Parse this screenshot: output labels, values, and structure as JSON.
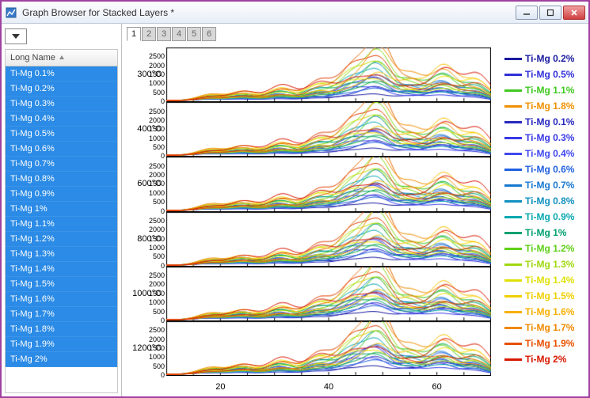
{
  "window": {
    "title": "Graph Browser for Stacked Layers *"
  },
  "sidebar": {
    "header": "Long Name",
    "items": [
      "Ti-Mg 0.1%",
      "Ti-Mg 0.2%",
      "Ti-Mg 0.3%",
      "Ti-Mg 0.4%",
      "Ti-Mg 0.5%",
      "Ti-Mg 0.6%",
      "Ti-Mg 0.7%",
      "Ti-Mg 0.8%",
      "Ti-Mg 0.9%",
      "Ti-Mg 1%",
      "Ti-Mg 1.1%",
      "Ti-Mg 1.2%",
      "Ti-Mg 1.3%",
      "Ti-Mg 1.4%",
      "Ti-Mg 1.5%",
      "Ti-Mg 1.6%",
      "Ti-Mg 1.7%",
      "Ti-Mg 1.8%",
      "Ti-Mg 1.9%",
      "Ti-Mg 2%"
    ]
  },
  "tabs": {
    "labels": [
      "1",
      "2",
      "3",
      "4",
      "5",
      "6"
    ],
    "active": 0
  },
  "chart": {
    "panels": [
      {
        "label": "300°C"
      },
      {
        "label": "400°C"
      },
      {
        "label": "600°C"
      },
      {
        "label": "800°C"
      },
      {
        "label": "1000°C"
      },
      {
        "label": "1200°C"
      }
    ],
    "yticks": [
      0,
      500,
      1000,
      1500,
      2000,
      2500
    ],
    "panel_ymax": 3000,
    "xlim": [
      10,
      70
    ],
    "xticks": [
      20,
      40,
      60
    ],
    "background": "#ffffff",
    "axis_color": "#000000",
    "tick_fontsize": 9,
    "label_fontsize": 11,
    "series_colors": [
      "#1a1aa0",
      "#2828c0",
      "#3030d8",
      "#3838e8",
      "#4048f0",
      "#2060e0",
      "#1878d0",
      "#1090c0",
      "#08a8b0",
      "#00a070",
      "#10b040",
      "#40c820",
      "#80d810",
      "#c0e008",
      "#f0e000",
      "#f8c000",
      "#f09000",
      "#e86800",
      "#e04000",
      "#d81800"
    ],
    "peaks_x": [
      18,
      24,
      31,
      38,
      44,
      49,
      55,
      61,
      67
    ],
    "peak_base_height": [
      180,
      260,
      380,
      520,
      900,
      1600,
      700,
      1000,
      650
    ],
    "peak_width": 2.4,
    "line_width": 1.0
  },
  "legend": [
    {
      "label": "Ti-Mg 0.2%",
      "color": "#1a1aa0"
    },
    {
      "label": "Ti-Mg 0.5%",
      "color": "#3030d8"
    },
    {
      "label": "Ti-Mg 1.1%",
      "color": "#40c820"
    },
    {
      "label": "Ti-Mg 1.8%",
      "color": "#f09000"
    },
    {
      "label": "Ti-Mg 0.1%",
      "color": "#2828c0"
    },
    {
      "label": "Ti-Mg 0.3%",
      "color": "#3838e8"
    },
    {
      "label": "Ti-Mg 0.4%",
      "color": "#4048f0"
    },
    {
      "label": "Ti-Mg 0.6%",
      "color": "#2060e0"
    },
    {
      "label": "Ti-Mg 0.7%",
      "color": "#1878d0"
    },
    {
      "label": "Ti-Mg 0.8%",
      "color": "#1090c0"
    },
    {
      "label": "Ti-Mg 0.9%",
      "color": "#08a8b0"
    },
    {
      "label": "Ti-Mg 1%",
      "color": "#00a070"
    },
    {
      "label": "Ti-Mg 1.2%",
      "color": "#60d018"
    },
    {
      "label": "Ti-Mg 1.3%",
      "color": "#a0d810"
    },
    {
      "label": "Ti-Mg 1.4%",
      "color": "#e0e008"
    },
    {
      "label": "Ti-Mg 1.5%",
      "color": "#f0d000"
    },
    {
      "label": "Ti-Mg 1.6%",
      "color": "#f8b000"
    },
    {
      "label": "Ti-Mg 1.7%",
      "color": "#f08800"
    },
    {
      "label": "Ti-Mg 1.9%",
      "color": "#e85000"
    },
    {
      "label": "Ti-Mg 2%",
      "color": "#d81800"
    }
  ]
}
